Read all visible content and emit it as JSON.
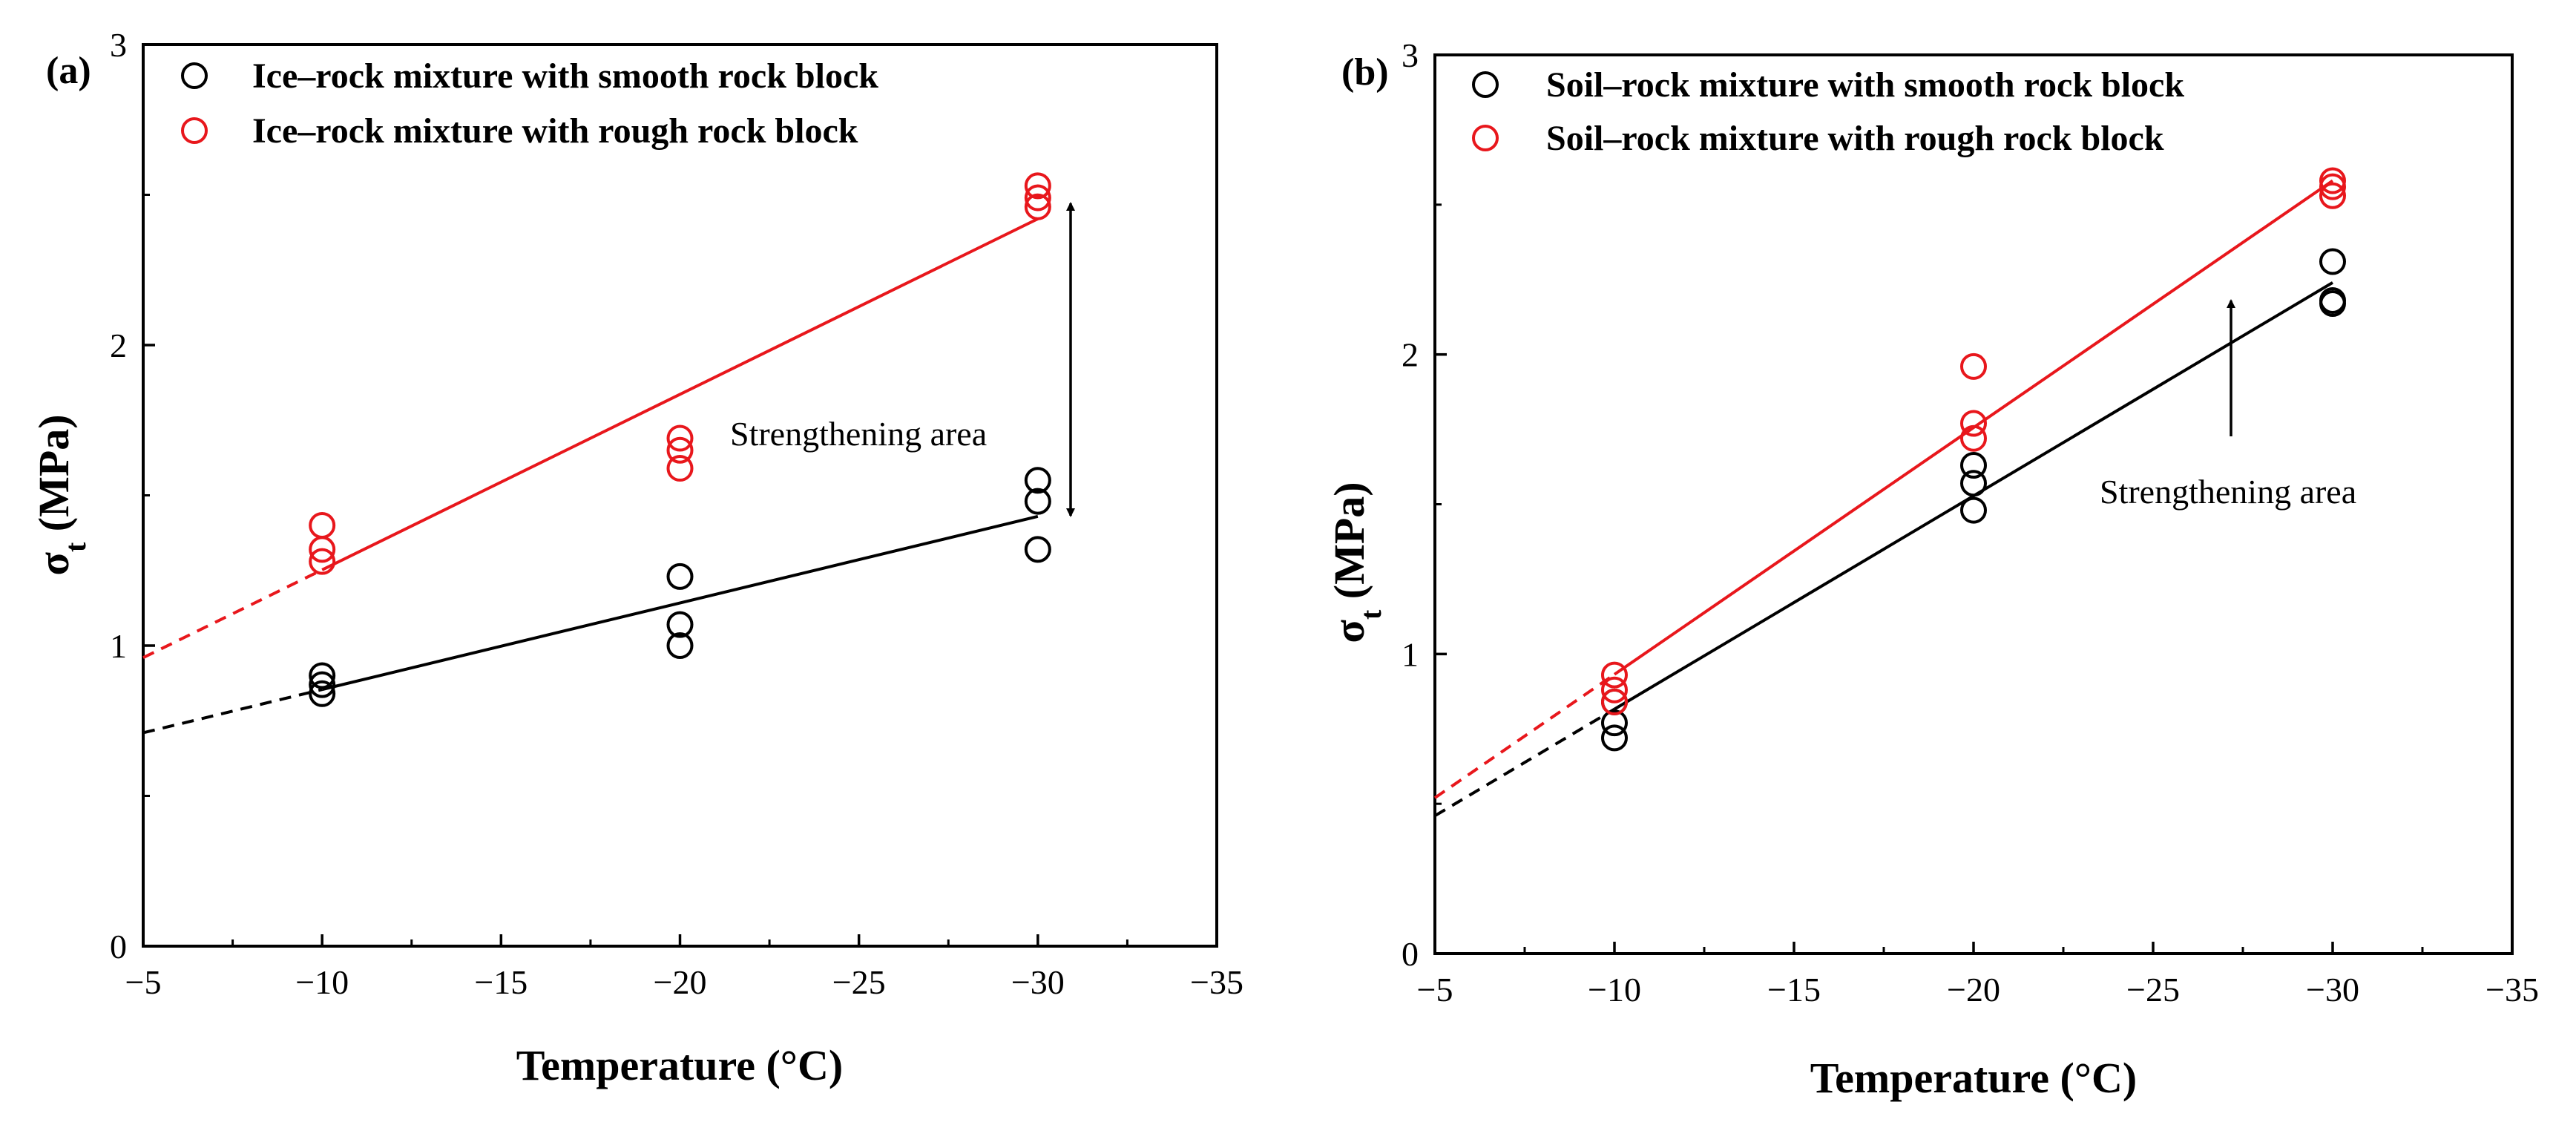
{
  "colors": {
    "smooth": "#000000",
    "rough": "#e8171c"
  },
  "chart_data": [
    {
      "type": "scatter",
      "panel_label": "(a)",
      "xlabel": "Temperature (°C)",
      "ylabel": "σ",
      "ylabel_sub": "t",
      "ylabel_unit": " (MPa)",
      "xlim": [
        -5,
        -35
      ],
      "ylim": [
        0,
        3
      ],
      "xticks": [
        -5,
        -10,
        -15,
        -20,
        -25,
        -30,
        -35
      ],
      "xtick_labels": [
        "−5",
        "−10",
        "−15",
        "−20",
        "−25",
        "−30",
        "−35"
      ],
      "yticks": [
        0,
        1,
        2,
        3
      ],
      "ytick_labels": [
        "0",
        "1",
        "2",
        "3"
      ],
      "legend_position": "top-left",
      "series": [
        {
          "name": "Ice–rock mixture with smooth rock block",
          "color_key": "smooth",
          "points": [
            [
              -10,
              0.84
            ],
            [
              -10,
              0.87
            ],
            [
              -10,
              0.9
            ],
            [
              -20,
              1.0
            ],
            [
              -20,
              1.07
            ],
            [
              -20,
              1.23
            ],
            [
              -30,
              1.32
            ],
            [
              -30,
              1.48
            ],
            [
              -30,
              1.55
            ]
          ],
          "fit": {
            "start": [
              -5,
              0.71
            ],
            "solid_from": -10,
            "end": [
              -30,
              1.43
            ]
          }
        },
        {
          "name": "Ice–rock mixture with rough rock block",
          "color_key": "rough",
          "points": [
            [
              -10,
              1.28
            ],
            [
              -10,
              1.32
            ],
            [
              -10,
              1.4
            ],
            [
              -20,
              1.59
            ],
            [
              -20,
              1.65
            ],
            [
              -20,
              1.69
            ],
            [
              -30,
              2.46
            ],
            [
              -30,
              2.49
            ],
            [
              -30,
              2.53
            ]
          ],
          "fit": {
            "start": [
              -5,
              0.96
            ],
            "solid_from": -10,
            "end": [
              -30,
              2.42
            ]
          }
        }
      ],
      "annotation": {
        "text": "Strengthening area",
        "text_at": [
          -28.8,
          1.72
        ],
        "arrow": {
          "x": -31,
          "y1": 1.43,
          "y2": 2.42,
          "double_headed": true
        }
      }
    },
    {
      "type": "scatter",
      "panel_label": "(b)",
      "xlabel": "Temperature (°C)",
      "ylabel": "σ",
      "ylabel_sub": "t",
      "ylabel_unit": " (MPa)",
      "xlim": [
        -5,
        -35
      ],
      "ylim": [
        0,
        3
      ],
      "xticks": [
        -5,
        -10,
        -15,
        -20,
        -25,
        -30,
        -35
      ],
      "xtick_labels": [
        "−5",
        "−10",
        "−15",
        "−20",
        "−25",
        "−30",
        "−35"
      ],
      "yticks": [
        0,
        1,
        2,
        3
      ],
      "ytick_labels": [
        "0",
        "1",
        "2",
        "3"
      ],
      "legend_position": "top-left",
      "series": [
        {
          "name": "Soil–rock mixture with smooth rock block",
          "color_key": "smooth",
          "points": [
            [
              -10,
              0.72
            ],
            [
              -10,
              0.77
            ],
            [
              -10,
              0.84
            ],
            [
              -20,
              1.48
            ],
            [
              -20,
              1.57
            ],
            [
              -20,
              1.63
            ],
            [
              -30,
              2.17
            ],
            [
              -30,
              2.18
            ],
            [
              -30,
              2.31
            ]
          ],
          "fit": {
            "start": [
              -5,
              0.46
            ],
            "solid_from": -10,
            "end": [
              -30,
              2.24
            ]
          }
        },
        {
          "name": "Soil–rock mixture  with rough rock block",
          "color_key": "rough",
          "points": [
            [
              -10,
              0.84
            ],
            [
              -10,
              0.88
            ],
            [
              -10,
              0.93
            ],
            [
              -20,
              1.72
            ],
            [
              -20,
              1.77
            ],
            [
              -20,
              1.96
            ],
            [
              -30,
              2.53
            ],
            [
              -30,
              2.56
            ],
            [
              -30,
              2.58
            ]
          ],
          "fit": {
            "start": [
              -5,
              0.52
            ],
            "solid_from": -10,
            "end": [
              -30,
              2.58
            ]
          }
        }
      ],
      "annotation": {
        "text": "Strengthening area",
        "text_at": [
          -27.7,
          1.54
        ],
        "arrow": {
          "x": -27,
          "y1": 1.73,
          "y2": 2.18,
          "double_headed": false
        }
      }
    }
  ]
}
